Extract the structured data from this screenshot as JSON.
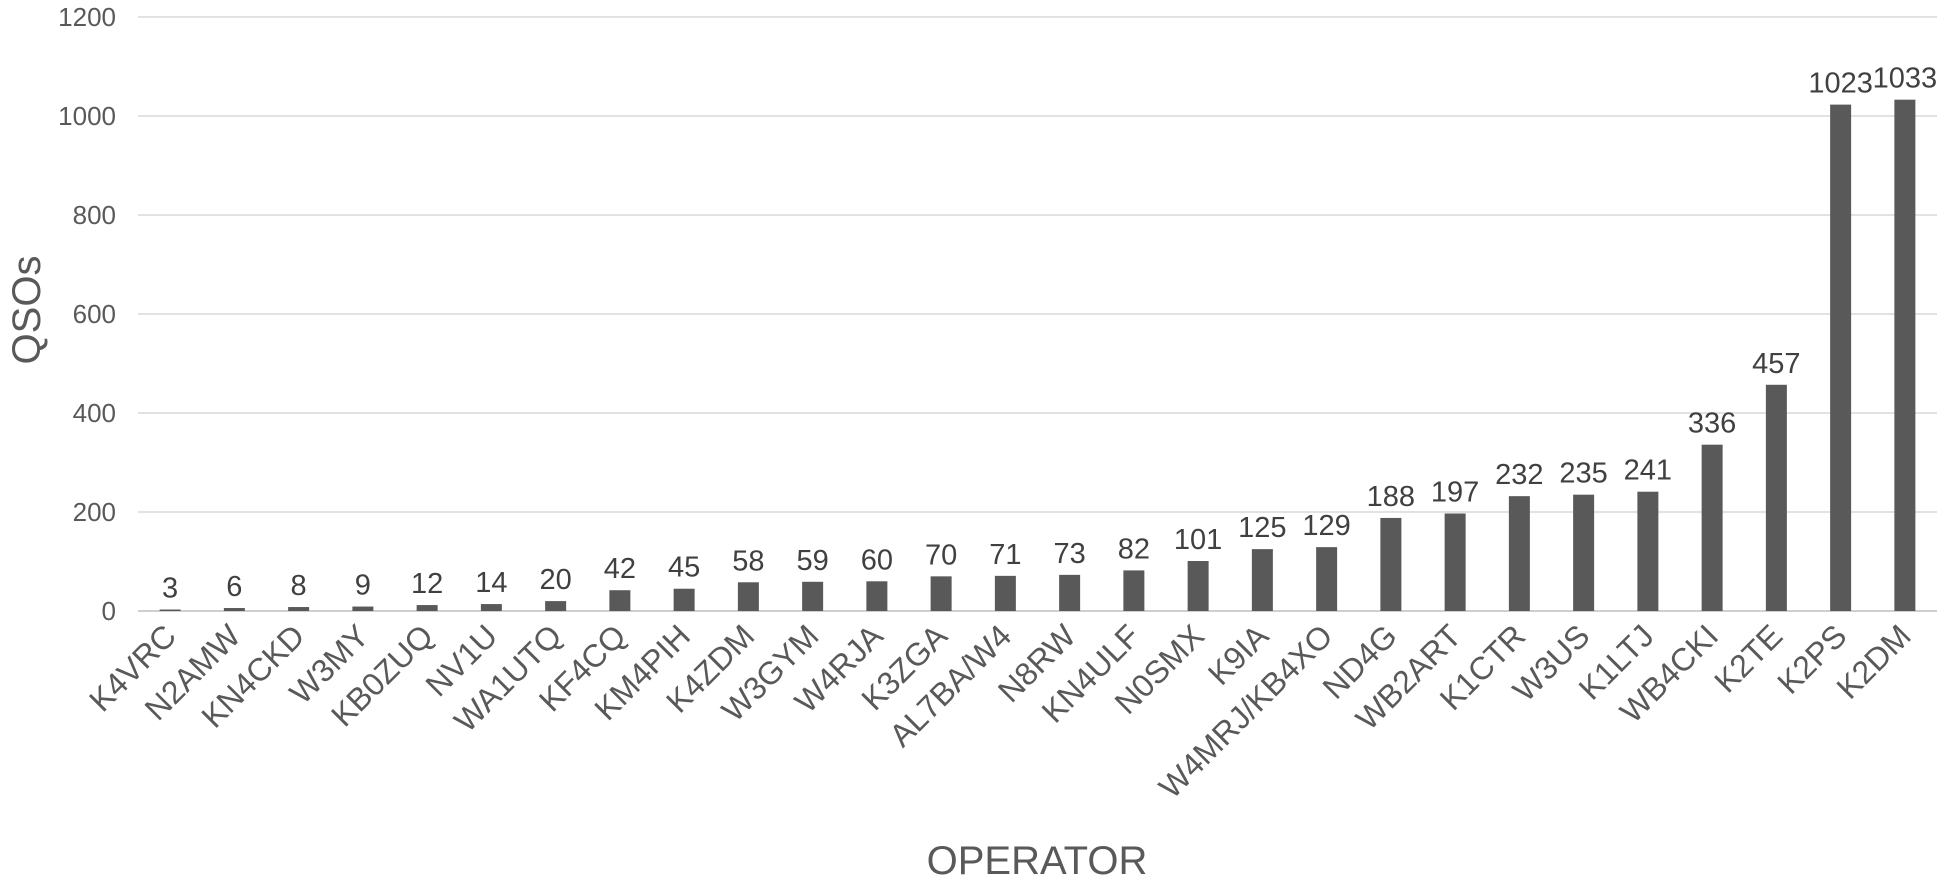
{
  "chart_data": {
    "type": "bar",
    "title": "",
    "xlabel": "OPERATOR",
    "ylabel": "QSOs",
    "ylim": [
      0,
      1200
    ],
    "yticks": [
      0,
      200,
      400,
      600,
      800,
      1000,
      1200
    ],
    "grid": true,
    "legend": "none",
    "bar_color": "#595959",
    "categories": [
      "K4VRC",
      "N2AMW",
      "KN4CKD",
      "W3MY",
      "KB0ZUQ",
      "NV1U",
      "WA1UTQ",
      "KF4CQ",
      "KM4PIH",
      "K4ZDM",
      "W3GYM",
      "W4RJA",
      "K3ZGA",
      "AL7BA/W4",
      "N8RW",
      "KN4ULF",
      "N0SMX",
      "K9IA",
      "W4MRJ/KB4XO",
      "ND4G",
      "WB2ART",
      "K1CTR",
      "W3US",
      "K1LTJ",
      "WB4CKI",
      "K2TE",
      "K2PS",
      "K2DM"
    ],
    "values": [
      3,
      6,
      8,
      9,
      12,
      14,
      20,
      42,
      45,
      58,
      59,
      60,
      70,
      71,
      73,
      82,
      101,
      125,
      129,
      188,
      197,
      232,
      235,
      241,
      336,
      457,
      1023,
      1033
    ]
  }
}
